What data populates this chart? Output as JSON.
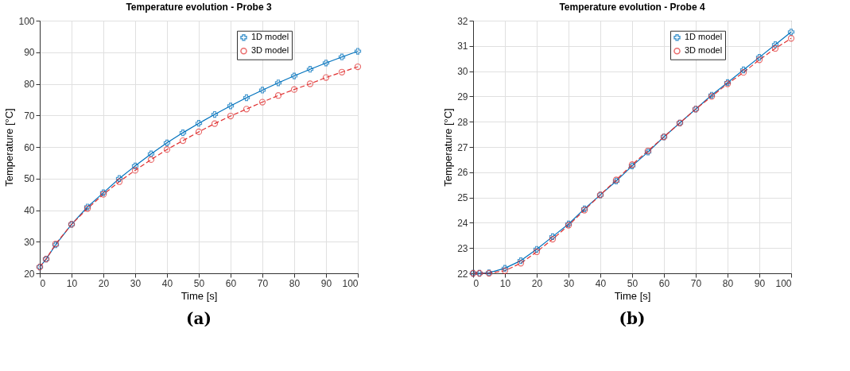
{
  "chart_data": [
    {
      "type": "line",
      "title": "Temperature evolution - Probe 3",
      "xlabel": "Time [s]",
      "ylabel": "Temperature [°C]",
      "annotations": [
        "(a)"
      ],
      "xlim": [
        0,
        100
      ],
      "xticks": [
        0,
        10,
        20,
        30,
        40,
        50,
        60,
        70,
        80,
        90,
        100
      ],
      "ylim": [
        20,
        100
      ],
      "yticks": [
        20,
        30,
        40,
        50,
        60,
        70,
        80,
        90,
        100
      ],
      "grid": true,
      "legend": "top right",
      "x": [
        0,
        2,
        5,
        10,
        15,
        20,
        25,
        30,
        35,
        40,
        45,
        50,
        55,
        60,
        65,
        70,
        75,
        80,
        85,
        90,
        95,
        100
      ],
      "series": [
        {
          "name": "1D model",
          "color": "#0072bd",
          "marker": "cross",
          "line_style": "solid",
          "values": [
            22,
            24.5,
            29,
            35.5,
            41,
            45.5,
            50,
            54,
            57.8,
            61.3,
            64.5,
            67.5,
            70.3,
            73,
            75.6,
            78,
            80.3,
            82.5,
            84.6,
            86.6,
            88.5,
            90.3
          ]
        },
        {
          "name": "3D model",
          "color": "#e03030",
          "marker": "circle",
          "line_style": "dashed",
          "values": [
            22,
            24.5,
            29.3,
            35.5,
            40.5,
            45,
            49,
            52.6,
            56,
            59.2,
            62,
            64.8,
            67.4,
            69.8,
            72,
            74.2,
            76.3,
            78.2,
            80,
            82,
            83.7,
            85.4
          ]
        }
      ]
    },
    {
      "type": "line",
      "title": "Temperature evolution - Probe 4",
      "xlabel": "Time [s]",
      "ylabel": "Temperature [°C]",
      "annotations": [
        "(b)"
      ],
      "xlim": [
        0,
        100
      ],
      "xticks": [
        0,
        10,
        20,
        30,
        40,
        50,
        60,
        70,
        80,
        90,
        100
      ],
      "ylim": [
        22,
        32
      ],
      "yticks": [
        22,
        23,
        24,
        25,
        26,
        27,
        28,
        29,
        30,
        31,
        32
      ],
      "grid": true,
      "legend": "top right",
      "x": [
        0,
        2,
        5,
        10,
        15,
        20,
        25,
        30,
        35,
        40,
        45,
        50,
        55,
        60,
        65,
        70,
        75,
        80,
        85,
        90,
        95,
        100
      ],
      "series": [
        {
          "name": "1D model",
          "color": "#0072bd",
          "marker": "cross",
          "line_style": "solid",
          "values": [
            22,
            22,
            22.02,
            22.2,
            22.5,
            22.95,
            23.45,
            23.95,
            24.55,
            25.1,
            25.65,
            26.25,
            26.8,
            27.4,
            27.95,
            28.5,
            29.05,
            29.55,
            30.05,
            30.55,
            31.05,
            31.55
          ]
        },
        {
          "name": "3D model",
          "color": "#e03030",
          "marker": "circle",
          "line_style": "dashed",
          "values": [
            22,
            22,
            22,
            22.1,
            22.4,
            22.85,
            23.35,
            23.9,
            24.5,
            25.1,
            25.7,
            26.3,
            26.85,
            27.4,
            27.95,
            28.5,
            29,
            29.5,
            29.95,
            30.45,
            30.9,
            31.3
          ]
        }
      ]
    }
  ]
}
